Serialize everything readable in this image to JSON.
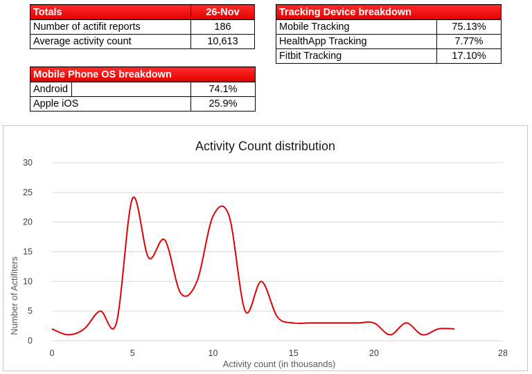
{
  "totals": {
    "header": "Totals",
    "date": "26-Nov",
    "rows": [
      {
        "label": "Number of actifit reports",
        "value": "186"
      },
      {
        "label": "Average activity count",
        "value": "10,613"
      }
    ]
  },
  "device": {
    "header": "Tracking Device breakdown",
    "rows": [
      {
        "label": "Mobile Tracking",
        "value": "75.13%"
      },
      {
        "label": "HealthApp Tracking",
        "value": "7.77%"
      },
      {
        "label": "Fitbit Tracking",
        "value": "17.10%"
      }
    ]
  },
  "os": {
    "header": "Mobile Phone OS breakdown",
    "rows": [
      {
        "label": "Android",
        "value": "74.1%"
      },
      {
        "label": "Apple iOS",
        "value": "25.9%"
      }
    ]
  },
  "chart_data": {
    "type": "line",
    "title": "Activity Count distribution",
    "xlabel": "Activity count (in thousands)",
    "ylabel": "Number of Actifiters",
    "xlim": [
      0,
      28
    ],
    "ylim": [
      0,
      30
    ],
    "x_ticks": [
      0,
      5,
      10,
      15,
      20,
      28
    ],
    "y_ticks": [
      0,
      5,
      10,
      15,
      20,
      25,
      30
    ],
    "grid": true,
    "line_color": "#e00000",
    "series": [
      {
        "x": [
          0,
          1,
          2,
          3,
          4,
          5,
          6,
          7,
          8,
          9,
          10,
          11,
          12,
          13,
          14,
          15,
          16,
          17,
          18,
          19,
          20,
          21,
          22,
          23,
          24,
          25
        ],
        "y": [
          2,
          1,
          2,
          5,
          3,
          24,
          14,
          17,
          8,
          10,
          21,
          21,
          5,
          10,
          4,
          3,
          3,
          3,
          3,
          3,
          3,
          1,
          3,
          1,
          2,
          2
        ]
      }
    ]
  }
}
